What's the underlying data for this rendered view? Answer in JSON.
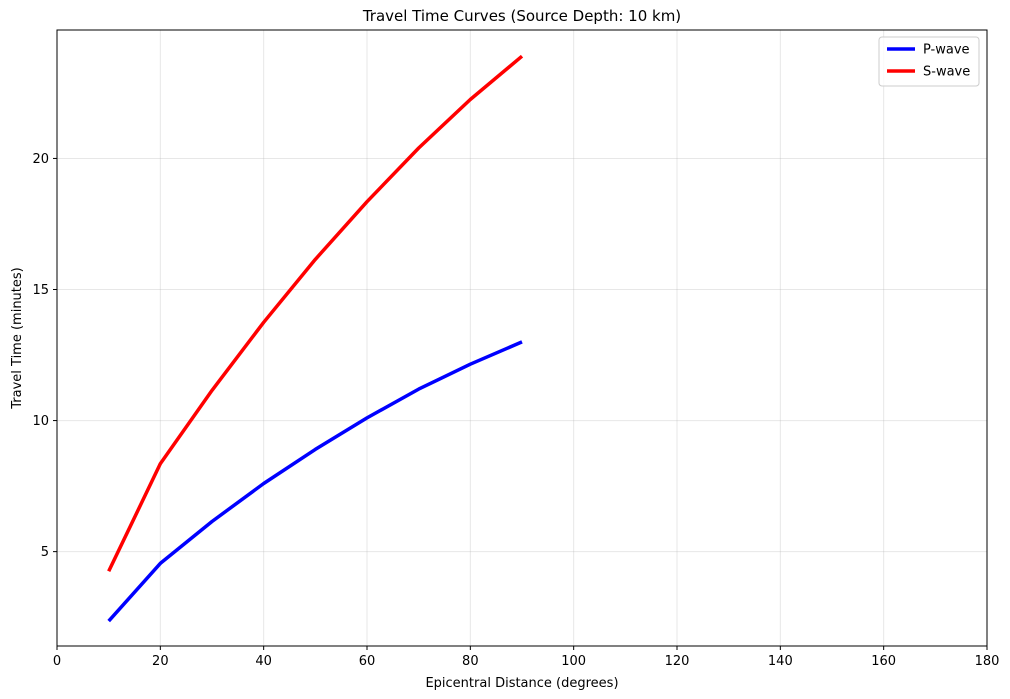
{
  "chart_data": {
    "type": "line",
    "title": "Travel Time Curves (Source Depth: 10 km)",
    "xlabel": "Epicentral Distance (degrees)",
    "ylabel": "Travel Time (minutes)",
    "xlim": [
      0,
      180
    ],
    "ylim": [
      1.4,
      24.9
    ],
    "xticks": [
      0,
      20,
      40,
      60,
      80,
      100,
      120,
      140,
      160,
      180
    ],
    "yticks": [
      5,
      10,
      15,
      20
    ],
    "grid": true,
    "legend_position": "top-right",
    "x": [
      10,
      20,
      30,
      40,
      50,
      60,
      70,
      80,
      90
    ],
    "series": [
      {
        "name": "P-wave",
        "color": "#0000ff",
        "values": [
          2.35,
          4.55,
          6.15,
          7.6,
          8.9,
          10.1,
          11.2,
          12.15,
          13.0
        ]
      },
      {
        "name": "S-wave",
        "color": "#ff0000",
        "values": [
          4.25,
          8.35,
          11.15,
          13.75,
          16.15,
          18.35,
          20.4,
          22.25,
          23.9
        ]
      }
    ]
  }
}
